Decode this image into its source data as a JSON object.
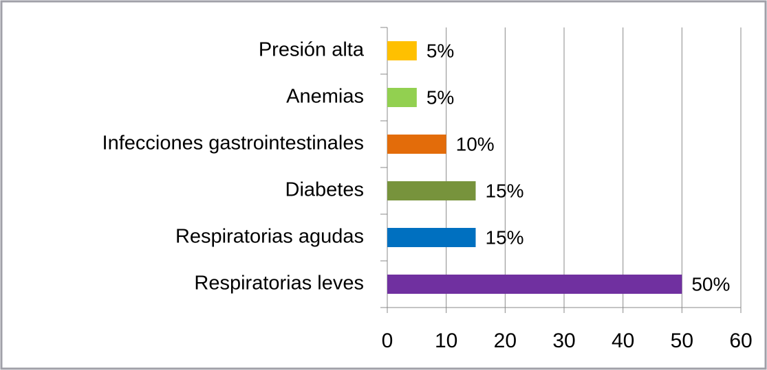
{
  "chart_data": {
    "type": "barh",
    "categories": [
      "Presión alta",
      "Anemias",
      "Infecciones gastrointestinales",
      "Diabetes",
      "Respiratorias agudas",
      "Respiratorias leves"
    ],
    "values": [
      5,
      5,
      10,
      15,
      15,
      50
    ],
    "value_labels": [
      "5%",
      "5%",
      "10%",
      "15%",
      "15%",
      "50%"
    ],
    "colors": [
      "#ffc000",
      "#92d050",
      "#e36c0a",
      "#77933c",
      "#0070c0",
      "#7030a0"
    ],
    "xlim": [
      0,
      60
    ],
    "xticks": [
      0,
      10,
      20,
      30,
      40,
      50,
      60
    ],
    "grid": true
  }
}
